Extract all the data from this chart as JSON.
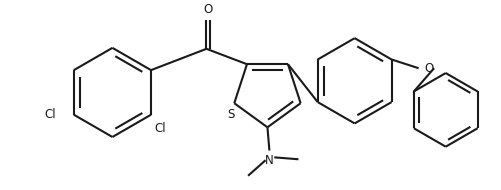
{
  "bg_color": "#ffffff",
  "line_color": "#1a1a1a",
  "line_width": 1.4,
  "font_size": 8.5,
  "atoms": {
    "O_label": "O",
    "S_label": "S",
    "N_label": "N",
    "Cl1_label": "Cl",
    "Cl2_label": "Cl",
    "O2_label": "O"
  }
}
